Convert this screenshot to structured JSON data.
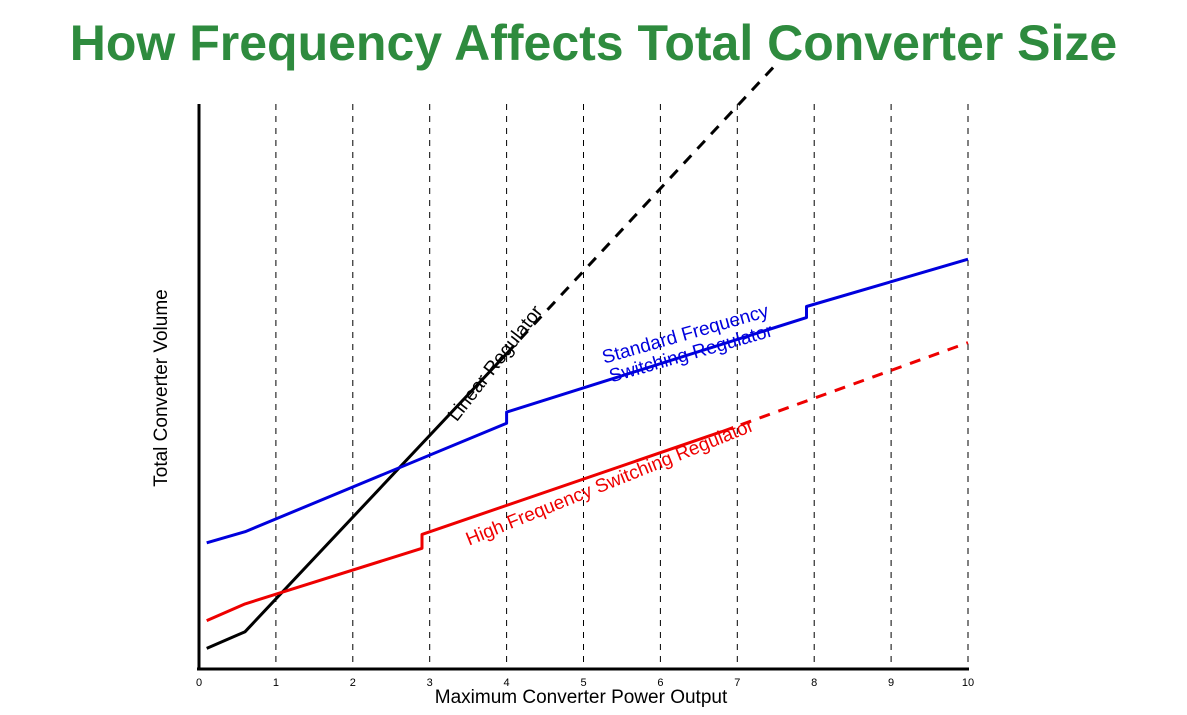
{
  "title": "How Frequency Affects Total Converter Size",
  "colors": {
    "title": "#2e8b3e",
    "linear": "#000000",
    "standard": "#0000dd",
    "high": "#ee0000",
    "grid": "#000000"
  },
  "chart_data": {
    "type": "line",
    "title": "How Frequency Affects Total Converter Size",
    "xlabel": "Maximum Converter Power Output",
    "ylabel": "Total Converter Volume",
    "xlim": [
      0,
      10
    ],
    "ylim": [
      0,
      10
    ],
    "y_ticks_labeled": false,
    "x_ticks": [
      "0",
      "1",
      "2",
      "3",
      "4",
      "5",
      "6",
      "7",
      "8",
      "9",
      "10"
    ],
    "grid": "vertical dashed",
    "series": [
      {
        "name": "Linear Regulator",
        "label": "Linear Regulator",
        "solid": [
          [
            0.1,
            0.3
          ],
          [
            0.6,
            0.6
          ],
          [
            4.0,
            5.6
          ]
        ],
        "dashed": [
          [
            4.0,
            5.6
          ],
          [
            7.5,
            10.8
          ]
        ]
      },
      {
        "name": "Standard Frequency Switching Regulator",
        "label_line1": "Standard Frequency",
        "label_line2": "Switching Regulator",
        "solid": [
          [
            0.1,
            2.2
          ],
          [
            0.6,
            2.4
          ],
          [
            4.0,
            4.35
          ],
          [
            4.0,
            4.55
          ],
          [
            7.9,
            6.25
          ],
          [
            7.9,
            6.45
          ],
          [
            10.0,
            7.3
          ]
        ],
        "dashed": []
      },
      {
        "name": "High Frequency Switching Regulator",
        "label": "High Frequency Switching Regulator",
        "solid": [
          [
            0.1,
            0.8
          ],
          [
            0.6,
            1.1
          ],
          [
            2.9,
            2.1
          ],
          [
            2.9,
            2.35
          ],
          [
            6.8,
            4.2
          ]
        ],
        "dashed": [
          [
            6.8,
            4.2
          ],
          [
            10.0,
            5.8
          ]
        ]
      }
    ]
  }
}
